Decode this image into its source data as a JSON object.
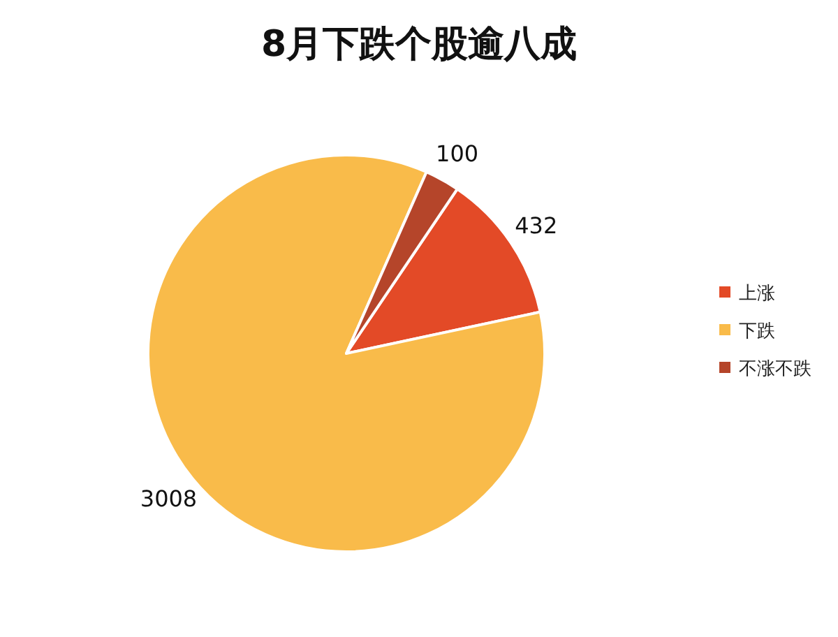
{
  "chart_data": {
    "type": "pie",
    "title": "8月下跌个股逾八成",
    "categories": [
      "上涨",
      "下跌",
      "不涨不跌"
    ],
    "values": [
      432,
      3008,
      100
    ],
    "colors": [
      "#e34a27",
      "#f9bb4a",
      "#b5452a"
    ],
    "data_labels": true,
    "legend": "right"
  }
}
